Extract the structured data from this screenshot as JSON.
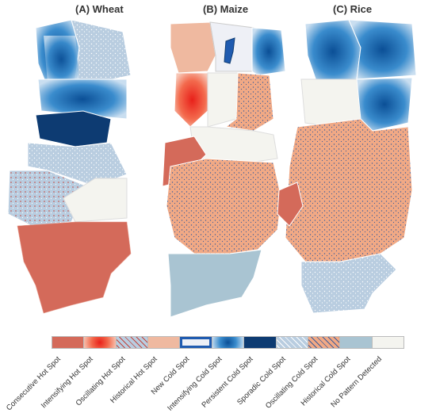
{
  "panels": [
    {
      "title": "(A) Wheat"
    },
    {
      "title": "(B) Maize"
    },
    {
      "title": "(C) Rice"
    }
  ],
  "colors": {
    "consecutive_hot": "#d46a5a",
    "intensifying_hot": "#f03c20",
    "oscillating_hot": "#c98a7e",
    "historical_hot": "#efb9a0",
    "new_cold": "#1f5bb0",
    "intensifying_cold": "#2e7fc4",
    "persistent_cold": "#0d3b72",
    "sporadic_cold": "#b9cde0",
    "oscillating_cold": "#f1a985",
    "historical_cold": "#a9c4d2",
    "no_pattern": "#f4f4ef"
  },
  "legend": {
    "items": [
      {
        "label": "Consecutive Hot Spot"
      },
      {
        "label": "Intensifying Hot Spot"
      },
      {
        "label": "Oscillating Hot Spot"
      },
      {
        "label": "Historical Hot Spot"
      },
      {
        "label": "New Cold Spot"
      },
      {
        "label": "Intensifying Cold Spot"
      },
      {
        "label": "Persistent Cold Spot"
      },
      {
        "label": "Sporadic Cold Spot"
      },
      {
        "label": "Oscillating Cold Spot"
      },
      {
        "label": "Historical Cold Spot"
      },
      {
        "label": "No Pattern Detected"
      }
    ]
  }
}
